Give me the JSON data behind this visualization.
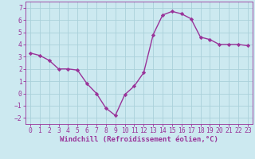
{
  "x": [
    0,
    1,
    2,
    3,
    4,
    5,
    6,
    7,
    8,
    9,
    10,
    11,
    12,
    13,
    14,
    15,
    16,
    17,
    18,
    19,
    20,
    21,
    22,
    23
  ],
  "y": [
    3.3,
    3.1,
    2.7,
    2.0,
    2.0,
    1.9,
    0.8,
    0.0,
    -1.2,
    -1.8,
    -0.1,
    0.6,
    1.7,
    4.8,
    6.4,
    6.7,
    6.5,
    6.1,
    4.6,
    4.4,
    4.0,
    4.0,
    4.0,
    3.9
  ],
  "line_color": "#993399",
  "marker": "D",
  "marker_size": 2.2,
  "xlabel": "Windchill (Refroidissement éolien,°C)",
  "xlabel_fontsize": 6.5,
  "background_color": "#cce9f0",
  "grid_color": "#aad0da",
  "tick_color": "#993399",
  "label_color": "#993399",
  "xlim": [
    -0.5,
    23.5
  ],
  "ylim": [
    -2.5,
    7.5
  ],
  "yticks": [
    -2,
    -1,
    0,
    1,
    2,
    3,
    4,
    5,
    6,
    7
  ],
  "xticks": [
    0,
    1,
    2,
    3,
    4,
    5,
    6,
    7,
    8,
    9,
    10,
    11,
    12,
    13,
    14,
    15,
    16,
    17,
    18,
    19,
    20,
    21,
    22,
    23
  ],
  "tick_fontsize": 5.8,
  "line_width": 1.0
}
